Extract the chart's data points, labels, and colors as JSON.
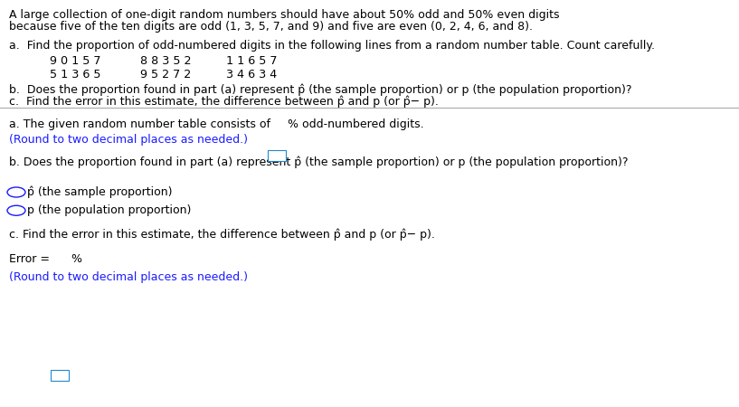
{
  "bg_color": "#ffffff",
  "text_color": "#000000",
  "blue_color": "#1a1aff",
  "box_color": "#2288cc",
  "title_line1": "A large collection of one-digit random numbers should have about 50% odd and 50% even digits",
  "title_line2": "because five of the ten digits are odd (1, 3, 5, 7, and 9) and five are even (0, 2, 4, 6, and 8).",
  "part_a_label": "a.  Find the proportion of odd-numbered digits in the following lines from a random number table. Count carefully.",
  "row1_col1": "9 0 1 5 7",
  "row1_col2": "8 8 3 5 2",
  "row1_col3": "1 1 6 5 7",
  "row2_col1": "5 1 3 6 5",
  "row2_col2": "9 5 2 7 2",
  "row2_col3": "3 4 6 3 4",
  "part_b_label": "b.  Does the proportion found in part (a) represent p̂ (the sample proportion) or p (the population proportion)?",
  "part_c_label": "c.  Find the error in this estimate, the difference between p̂ and p (or p̂− p).",
  "answer_a_prefix": "a. The given random number table consists of",
  "answer_a_suffix": "% odd-numbered digits.",
  "answer_a_blue": "(Round to two decimal places as needed.)",
  "answer_b_label": "b. Does the proportion found in part (a) represent p̂ (the sample proportion) or p (the population proportion)?",
  "option1": "p̂ (the sample proportion)",
  "option2": "p (the population proportion)",
  "answer_c_label": "c. Find the error in this estimate, the difference between p̂ and p (or p̂− p).",
  "error_prefix": "Error =",
  "error_suffix": "%",
  "error_blue": "(Round to two decimal places as needed.)",
  "fs": 9.0,
  "fs_mono": 9.2
}
